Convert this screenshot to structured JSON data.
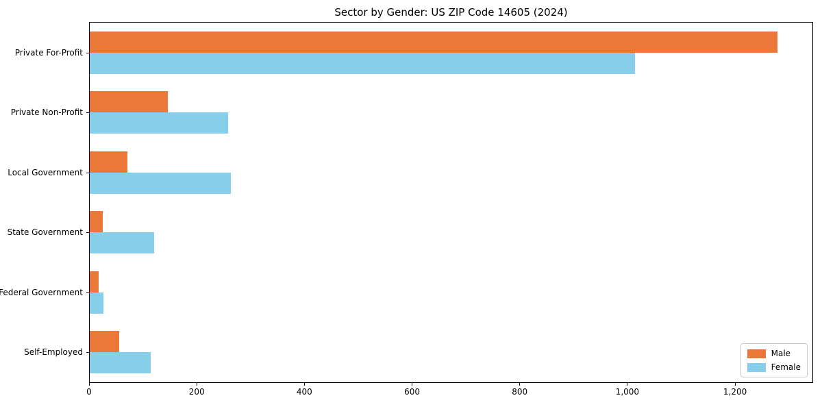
{
  "chart_data": {
    "type": "bar",
    "orientation": "horizontal",
    "title": "Sector by Gender: US ZIP Code 14605 (2024)",
    "categories": [
      "Private For-Profit",
      "Private Non-Profit",
      "Local Government",
      "State Government",
      "Federal Government",
      "Self-Employed"
    ],
    "series": [
      {
        "name": "Male",
        "color": "#EB7838",
        "values": [
          1280,
          145,
          70,
          24,
          16,
          55
        ]
      },
      {
        "name": "Female",
        "color": "#87CEEB",
        "values": [
          1015,
          257,
          262,
          120,
          25,
          113
        ]
      }
    ],
    "xlim": [
      0,
      1345
    ],
    "xticks": [
      0,
      200,
      400,
      600,
      800,
      1000,
      1200
    ],
    "xtick_labels": [
      "0",
      "200",
      "400",
      "600",
      "800",
      "1,000",
      "1,200"
    ],
    "xlabel": "",
    "ylabel": "",
    "grid": false,
    "legend_position": "lower right"
  }
}
